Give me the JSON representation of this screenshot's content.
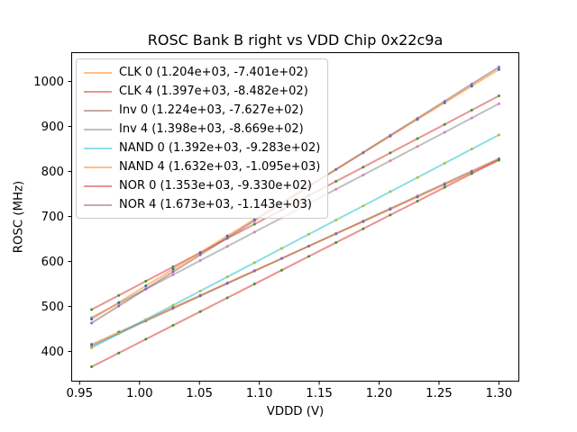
{
  "chart_data": {
    "type": "scatter",
    "title": "ROSC Bank B right vs VDD Chip 0x22c9a",
    "xlabel": "VDDD (V)",
    "ylabel": "ROSC (MHz)",
    "xlim": [
      0.943,
      1.317
    ],
    "ylim": [
      333,
      1065
    ],
    "grid": false,
    "legend_position": "upper left",
    "x_tick_values": [
      0.95,
      1.0,
      1.05,
      1.1,
      1.15,
      1.2,
      1.25,
      1.3
    ],
    "x_tick_labels": [
      "0.95",
      "1.00",
      "1.05",
      "1.10",
      "1.15",
      "1.20",
      "1.25",
      "1.30"
    ],
    "y_tick_values": [
      400,
      500,
      600,
      700,
      800,
      900,
      1000
    ],
    "y_tick_labels": [
      "400",
      "500",
      "600",
      "700",
      "800",
      "900",
      "1000"
    ],
    "x": [
      0.96,
      0.9827,
      1.0053,
      1.028,
      1.0507,
      1.0733,
      1.096,
      1.1187,
      1.1413,
      1.164,
      1.1867,
      1.2093,
      1.232,
      1.2547,
      1.2773,
      1.3
    ],
    "series": [
      {
        "name": "CLK 0",
        "label": "CLK 0 (1.204e+03, -7.401e+02)",
        "fit_slope": 1204,
        "fit_intercept": -740.1,
        "line_color": "rgba(255,127,14,0.5)",
        "marker_color": "#1f77b4",
        "y": [
          415.7,
          443.0,
          470.3,
          497.6,
          524.8,
          552.1,
          579.4,
          606.7,
          634.0,
          661.3,
          688.6,
          715.9,
          743.2,
          770.5,
          797.8,
          825.1
        ]
      },
      {
        "name": "CLK 4",
        "label": "CLK 4 (1.397e+03, -8.482e+02)",
        "fit_slope": 1397,
        "fit_intercept": -848.2,
        "line_color": "rgba(214,39,40,0.5)",
        "marker_color": "#2ca02c",
        "y": [
          492.9,
          524.6,
          556.3,
          587.9,
          619.6,
          651.3,
          682.9,
          714.6,
          746.2,
          777.9,
          809.6,
          841.2,
          872.9,
          904.6,
          936.2,
          967.9
        ]
      },
      {
        "name": "Inv 0",
        "label": "Inv 0 (1.224e+03, -7.627e+02)",
        "fit_slope": 1224,
        "fit_intercept": -762.7,
        "line_color": "rgba(140,86,75,0.5)",
        "marker_color": "#9467bd",
        "y": [
          412.3,
          440.1,
          467.8,
          495.6,
          523.3,
          551.1,
          578.8,
          606.5,
          634.3,
          662.0,
          689.8,
          717.5,
          745.3,
          773.0,
          800.8,
          828.5
        ]
      },
      {
        "name": "Inv 4",
        "label": "Inv 4 (1.398e+03, -8.669e+02)",
        "fit_slope": 1398,
        "fit_intercept": -866.9,
        "line_color": "rgba(127,127,127,0.5)",
        "marker_color": "#e377c2",
        "y": [
          475.2,
          506.9,
          538.6,
          570.2,
          601.9,
          633.6,
          665.3,
          697.0,
          728.7,
          760.4,
          792.1,
          823.7,
          855.4,
          887.1,
          918.8,
          950.5
        ]
      },
      {
        "name": "NAND 0",
        "label": "NAND 0 (1.392e+03, -9.283e+02)",
        "fit_slope": 1392,
        "fit_intercept": -928.3,
        "line_color": "rgba(23,190,207,0.5)",
        "marker_color": "#bcbd22",
        "y": [
          408.0,
          439.6,
          471.1,
          502.7,
          534.2,
          565.8,
          597.3,
          628.9,
          660.4,
          692.0,
          723.5,
          755.1,
          786.6,
          818.2,
          849.7,
          881.3
        ]
      },
      {
        "name": "NAND 4",
        "label": "NAND 4 (1.632e+03, -1.095e+03)",
        "fit_slope": 1632,
        "fit_intercept": -1095,
        "line_color": "rgba(255,127,14,0.5)",
        "marker_color": "#1f77b4",
        "y": [
          471.7,
          508.7,
          545.7,
          582.7,
          619.7,
          656.7,
          693.7,
          730.7,
          767.7,
          804.6,
          841.6,
          878.6,
          915.6,
          952.6,
          989.6,
          1026.6
        ]
      },
      {
        "name": "NOR 0",
        "label": "NOR 0 (1.353e+03, -9.330e+02)",
        "fit_slope": 1353,
        "fit_intercept": -933.0,
        "line_color": "rgba(214,39,40,0.5)",
        "marker_color": "#2ca02c",
        "y": [
          365.9,
          396.5,
          427.2,
          457.9,
          488.6,
          519.2,
          549.9,
          580.6,
          611.2,
          641.9,
          672.6,
          703.2,
          733.9,
          764.6,
          795.2,
          825.9
        ]
      },
      {
        "name": "NOR 4",
        "label": "NOR 4 (1.673e+03, -1.143e+03)",
        "fit_slope": 1673,
        "fit_intercept": -1143,
        "line_color": "rgba(140,86,75,0.5)",
        "marker_color": "#9467bd",
        "y": [
          463.1,
          501.0,
          538.9,
          576.8,
          614.8,
          652.7,
          690.6,
          728.5,
          766.4,
          804.4,
          842.3,
          880.2,
          918.1,
          956.1,
          994.0,
          1031.9
        ]
      }
    ]
  }
}
